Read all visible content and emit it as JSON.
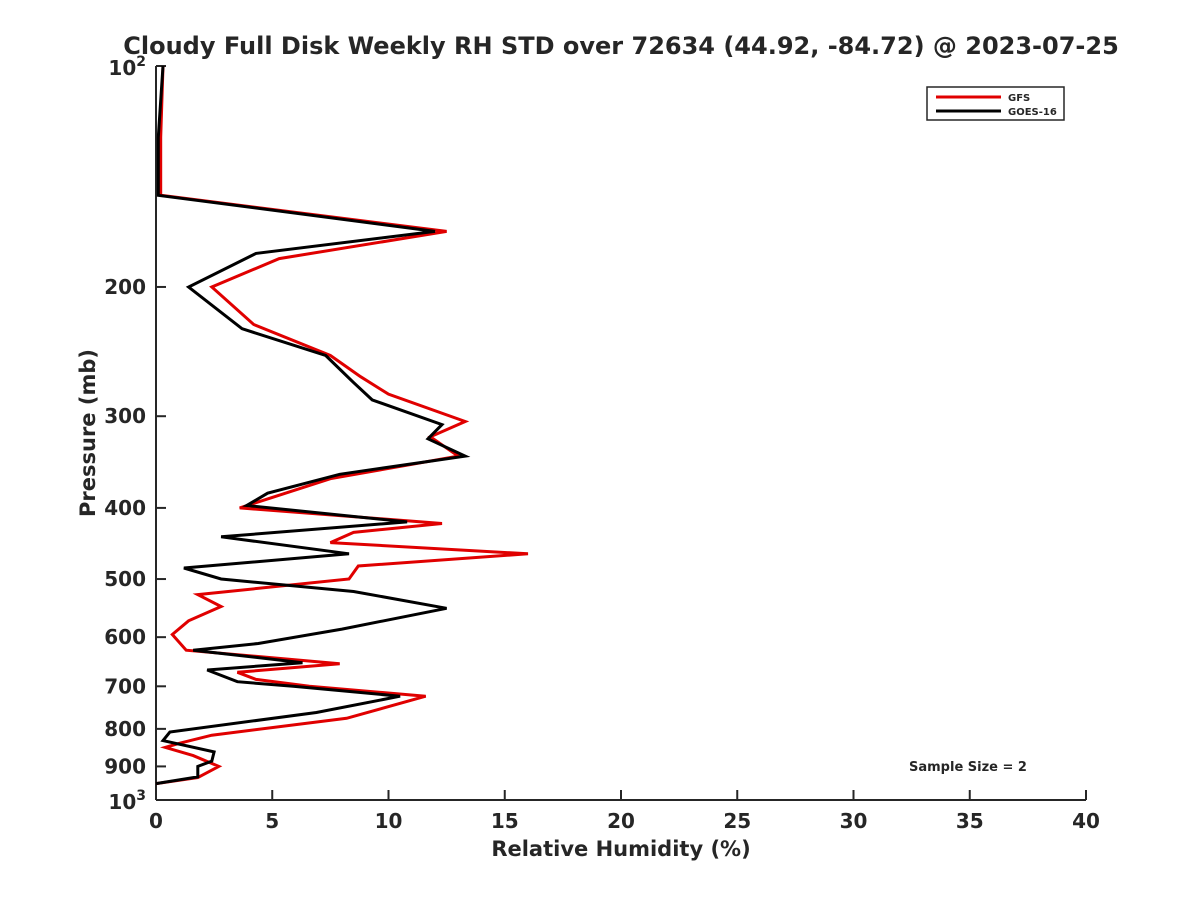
{
  "chart_data": {
    "type": "line",
    "title": "Cloudy Full Disk Weekly RH STD over 72634 (44.92, -84.72) @ 2023-07-25",
    "xlabel": "Relative Humidity (%)",
    "ylabel": "Pressure (mb)",
    "xlim": [
      0,
      40
    ],
    "ylim": [
      100,
      1000
    ],
    "y_scale": "log",
    "y_reversed": true,
    "x_ticks": [
      0,
      5,
      10,
      15,
      20,
      25,
      30,
      35,
      40
    ],
    "y_ticks": [
      {
        "value": 100,
        "base": "10",
        "exp": "2"
      },
      {
        "value": 200,
        "label": "200"
      },
      {
        "value": 300,
        "label": "300"
      },
      {
        "value": 400,
        "label": "400"
      },
      {
        "value": 500,
        "label": "500"
      },
      {
        "value": 600,
        "label": "600"
      },
      {
        "value": 700,
        "label": "700"
      },
      {
        "value": 800,
        "label": "800"
      },
      {
        "value": 900,
        "label": "900"
      },
      {
        "value": 1000,
        "base": "10",
        "exp": "3"
      }
    ],
    "legend_position": "top-right",
    "annotation": "Sample Size = 2",
    "grid": false,
    "series": [
      {
        "name": "GFS",
        "color": "#e00000",
        "points": [
          [
            0.3,
            100
          ],
          [
            0.2,
            125
          ],
          [
            0.2,
            150
          ],
          [
            12.5,
            168
          ],
          [
            5.3,
            183
          ],
          [
            2.4,
            200
          ],
          [
            4.2,
            225
          ],
          [
            7.5,
            248
          ],
          [
            8.8,
            265
          ],
          [
            10.0,
            280
          ],
          [
            13.3,
            305
          ],
          [
            11.8,
            320
          ],
          [
            13.0,
            340
          ],
          [
            7.5,
            365
          ],
          [
            5.0,
            387
          ],
          [
            3.6,
            400
          ],
          [
            12.3,
            420
          ],
          [
            8.5,
            432
          ],
          [
            7.5,
            446
          ],
          [
            16.0,
            462
          ],
          [
            8.7,
            480
          ],
          [
            8.3,
            500
          ],
          [
            1.8,
            525
          ],
          [
            2.8,
            545
          ],
          [
            1.4,
            570
          ],
          [
            0.7,
            595
          ],
          [
            1.3,
            625
          ],
          [
            7.9,
            652
          ],
          [
            3.5,
            670
          ],
          [
            4.3,
            685
          ],
          [
            6.6,
            700
          ],
          [
            11.6,
            722
          ],
          [
            8.2,
            774
          ],
          [
            2.4,
            816
          ],
          [
            1.0,
            837
          ],
          [
            0.4,
            848
          ],
          [
            1.6,
            870
          ],
          [
            2.7,
            900
          ],
          [
            1.8,
            932
          ],
          [
            0.0,
            950
          ]
        ]
      },
      {
        "name": "GOES-16",
        "color": "#000000",
        "points": [
          [
            0.3,
            100
          ],
          [
            0.1,
            125
          ],
          [
            0.1,
            150
          ],
          [
            12.0,
            168
          ],
          [
            4.3,
            180
          ],
          [
            1.4,
            200
          ],
          [
            3.7,
            228
          ],
          [
            7.3,
            248
          ],
          [
            8.5,
            270
          ],
          [
            9.3,
            285
          ],
          [
            12.3,
            308
          ],
          [
            11.7,
            322
          ],
          [
            13.3,
            340
          ],
          [
            7.9,
            360
          ],
          [
            4.8,
            382
          ],
          [
            3.9,
            397
          ],
          [
            10.8,
            418
          ],
          [
            2.8,
            438
          ],
          [
            8.3,
            462
          ],
          [
            1.2,
            483
          ],
          [
            2.8,
            500
          ],
          [
            8.5,
            520
          ],
          [
            12.5,
            548
          ],
          [
            8.0,
            585
          ],
          [
            4.4,
            612
          ],
          [
            1.6,
            625
          ],
          [
            6.3,
            650
          ],
          [
            2.2,
            665
          ],
          [
            3.5,
            690
          ],
          [
            5.9,
            700
          ],
          [
            10.5,
            722
          ],
          [
            6.9,
            760
          ],
          [
            0.6,
            808
          ],
          [
            0.3,
            830
          ],
          [
            2.5,
            860
          ],
          [
            2.4,
            885
          ],
          [
            1.8,
            900
          ],
          [
            1.8,
            930
          ],
          [
            0.0,
            950
          ]
        ]
      }
    ]
  }
}
